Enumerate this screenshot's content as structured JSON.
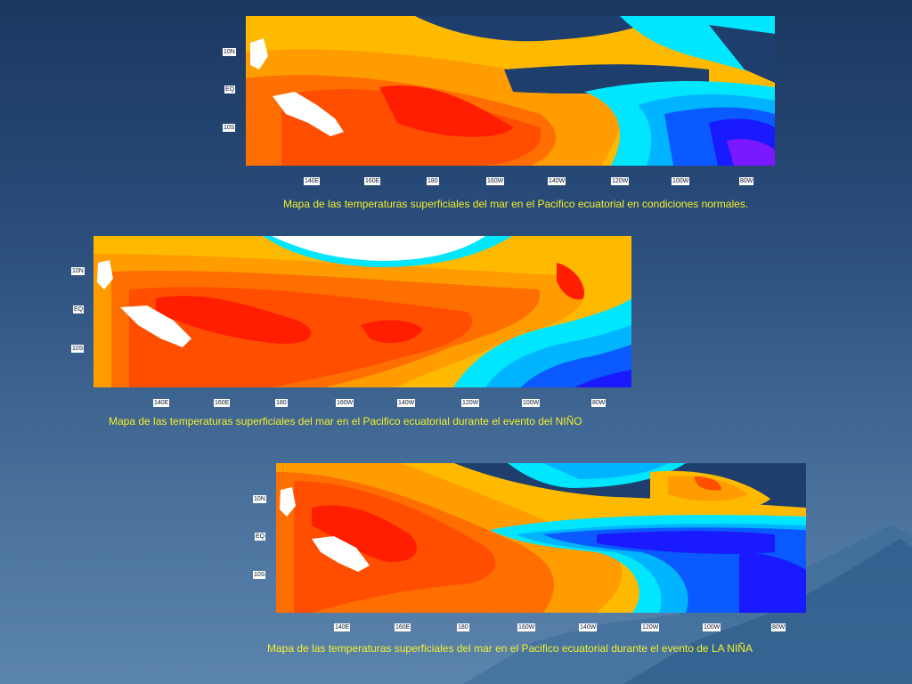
{
  "colors": {
    "warm_orange": "#ff9c00",
    "light_orange": "#ffba00",
    "red_orange": "#ff4e00",
    "red": "#ff1e00",
    "cyan": "#00e6ff",
    "sky": "#00b4ff",
    "blue": "#0a5aff",
    "deep_blue": "#1a1aff",
    "violet": "#7a18ff",
    "land": "#ffffff",
    "caption": "#f3ef2a"
  },
  "axes": {
    "y_ticks": [
      "10N",
      "EQ",
      "10S"
    ],
    "x_ticks": [
      "140E",
      "160E",
      "180",
      "160W",
      "140W",
      "120W",
      "100W",
      "80W"
    ]
  },
  "maps": [
    {
      "id": "normal",
      "caption": "Mapa de las temperaturas superficiales del mar en el Pacifico ecuatorial en condiciones normales."
    },
    {
      "id": "nino",
      "caption": "Mapa de las temperaturas superficiales del mar en el Pacifico ecuatorial durante el evento del NIÑO"
    },
    {
      "id": "nina",
      "caption": "Mapa de las temperaturas superficiales del mar en el Pacifico ecuatorial durante el evento de LA NIÑA"
    }
  ]
}
